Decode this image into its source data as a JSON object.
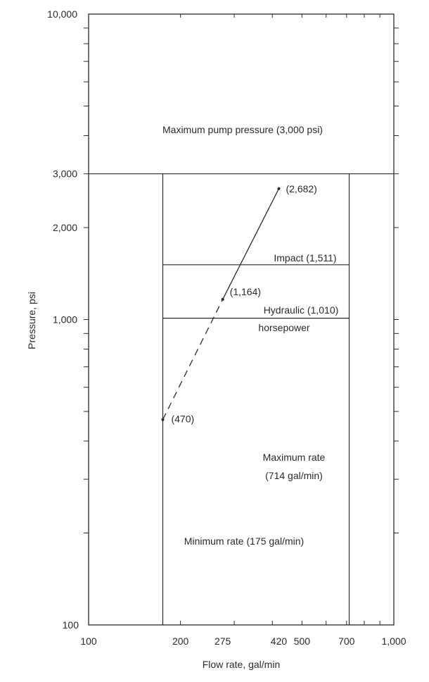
{
  "chart_data": {
    "type": "line",
    "xscale": "log",
    "yscale": "log",
    "xlim": [
      100,
      1000
    ],
    "ylim": [
      100,
      10000
    ],
    "xlabel": "Flow rate, gal/min",
    "ylabel": "Pressure, psi",
    "xticks": [
      {
        "value": 100,
        "label": "100"
      },
      {
        "value": 200,
        "label": "200"
      },
      {
        "value": 275,
        "label": "275"
      },
      {
        "value": 420,
        "label": "420"
      },
      {
        "value": 500,
        "label": "500"
      },
      {
        "value": 700,
        "label": "700"
      },
      {
        "value": 1000,
        "label": "1,000"
      }
    ],
    "yticks": [
      {
        "value": 100,
        "label": "100"
      },
      {
        "value": 1000,
        "label": "1,000"
      },
      {
        "value": 2000,
        "label": "2,000"
      },
      {
        "value": 3000,
        "label": "3,000"
      },
      {
        "value": 10000,
        "label": "10,000"
      }
    ],
    "series": [
      {
        "points": [
          {
            "x": 175,
            "y": 470,
            "label": "(470)"
          },
          {
            "x": 275,
            "y": 1164,
            "label": "(1,164)"
          },
          {
            "x": 420,
            "y": 2682,
            "label": "(2,682)"
          }
        ],
        "dashed_below_x": 275
      }
    ],
    "limits": {
      "max_pressure": {
        "value": 3000,
        "label": "Maximum pump pressure (3,000 psi)"
      },
      "min_rate": {
        "value": 175,
        "label": "Minimum rate (175 gal/min)"
      },
      "max_rate": {
        "value": 714,
        "label_line1": "Maximum rate",
        "label_line2": "(714 gal/min)"
      },
      "impact": {
        "value": 1511,
        "label": "Impact (1,511)"
      },
      "hydraulic": {
        "value": 1010,
        "label_line1": "Hydraulic (1,010)",
        "label_line2": "horsepower"
      }
    },
    "grid": false
  }
}
